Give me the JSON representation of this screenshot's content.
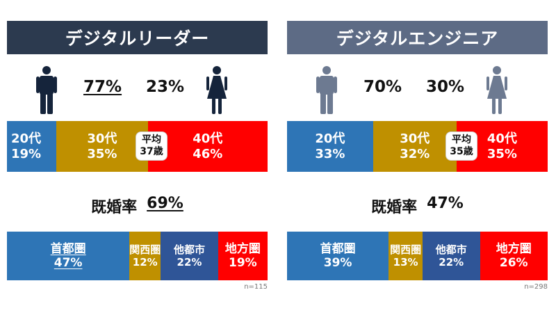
{
  "colors": {
    "age_20": "#2e75b6",
    "age_30": "#bf9000",
    "age_40": "#ff0000",
    "region_capital": "#2e75b6",
    "region_kansai": "#bf9000",
    "region_other_city": "#2f5597",
    "region_rural": "#ff0000",
    "leader_title_bg": "#2c3a4f",
    "engineer_title_bg": "#5d6b85",
    "leader_icon": "#15243b",
    "engineer_icon": "#6d7a91"
  },
  "chart_data": [
    {
      "type": "bar",
      "title": "デジタルリーダー",
      "gender": {
        "male": "77%",
        "female": "23%",
        "male_value": 77,
        "female_value": 23
      },
      "age": {
        "categories": [
          "20代",
          "30代",
          "40代"
        ],
        "labels": [
          "19%",
          "35%",
          "46%"
        ],
        "values": [
          19,
          35,
          46
        ],
        "average_label": "平均",
        "average_value": "37歳"
      },
      "married": {
        "label": "既婚率",
        "value": "69%"
      },
      "region": {
        "categories": [
          "首都圏",
          "関西圏",
          "他都市",
          "地方圏"
        ],
        "labels": [
          "47%",
          "12%",
          "22%",
          "19%"
        ],
        "values": [
          47,
          12,
          22,
          19
        ]
      },
      "n": "n=115"
    },
    {
      "type": "bar",
      "title": "デジタルエンジニア",
      "gender": {
        "male": "70%",
        "female": "30%",
        "male_value": 70,
        "female_value": 30
      },
      "age": {
        "categories": [
          "20代",
          "30代",
          "40代"
        ],
        "labels": [
          "33%",
          "32%",
          "35%"
        ],
        "values": [
          33,
          32,
          35
        ],
        "average_label": "平均",
        "average_value": "35歳"
      },
      "married": {
        "label": "既婚率",
        "value": "47%"
      },
      "region": {
        "categories": [
          "首都圏",
          "関西圏",
          "他都市",
          "地方圏"
        ],
        "labels": [
          "39%",
          "13%",
          "22%",
          "26%"
        ],
        "values": [
          39,
          13,
          22,
          26
        ]
      },
      "n": "n=298"
    }
  ]
}
